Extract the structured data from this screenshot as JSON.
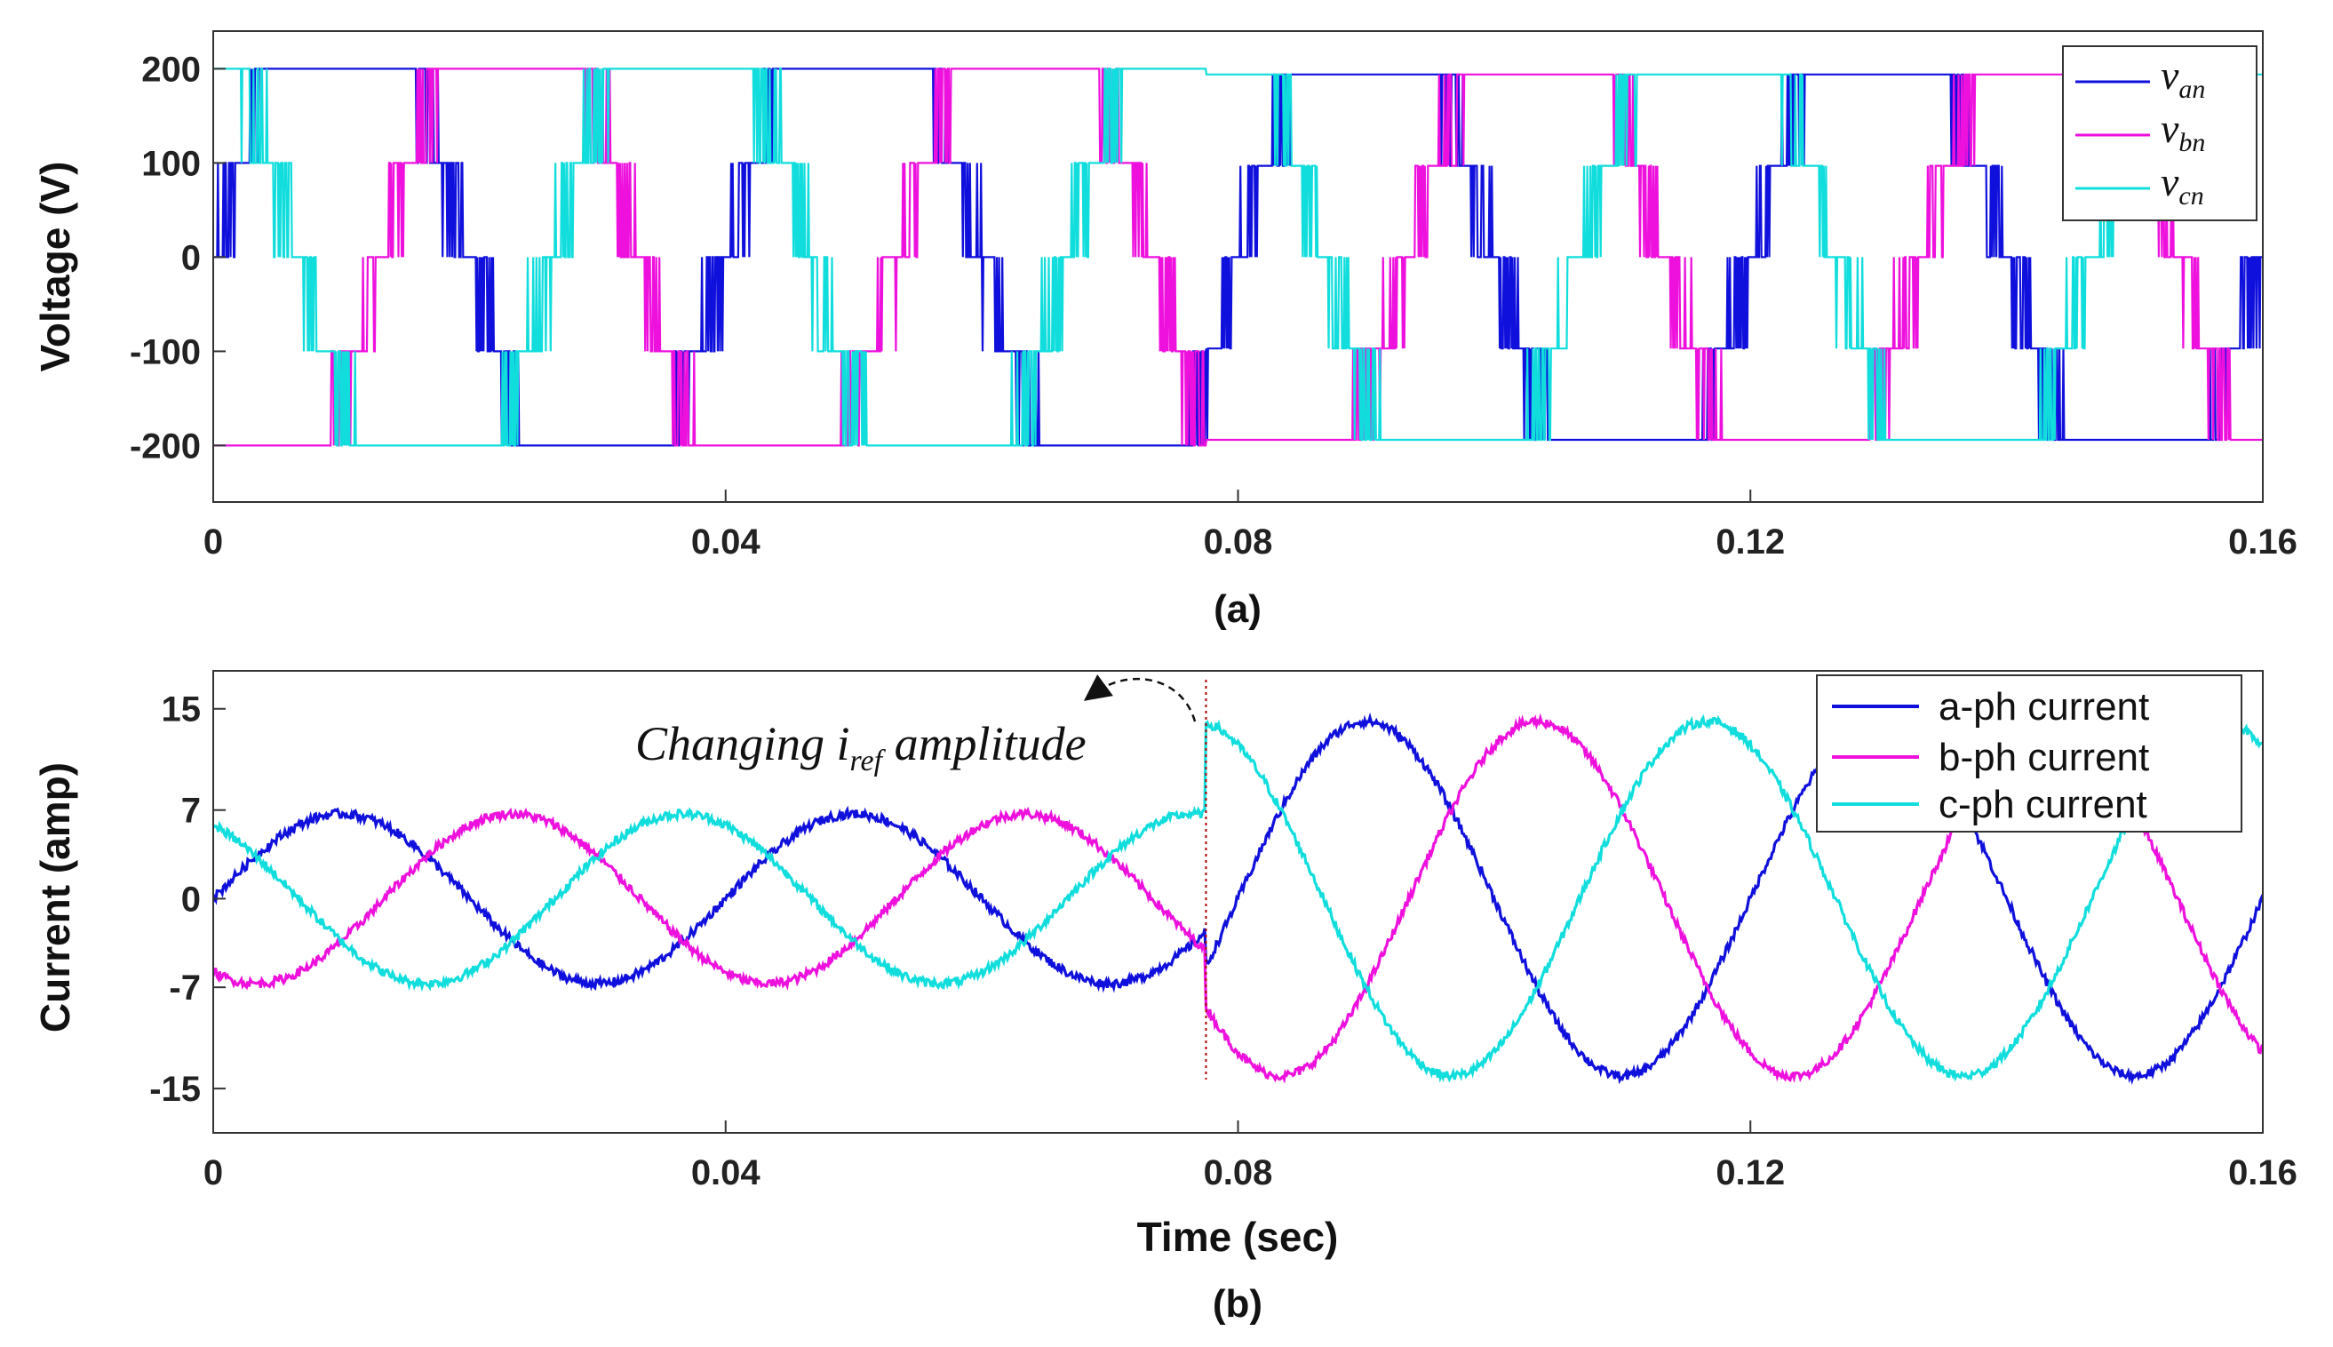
{
  "colors": {
    "a": "#1010dd",
    "b": "#ee11dd",
    "c": "#11dddd"
  },
  "chart_data": [
    {
      "id": "a",
      "type": "line",
      "caption": "(a)",
      "xlabel": "",
      "ylabel": "Voltage (V)",
      "xlim": [
        0,
        0.16
      ],
      "ylim": [
        -260,
        240
      ],
      "xticks": [
        0,
        0.04,
        0.08,
        0.12,
        0.16
      ],
      "xtick_labels": [
        "0",
        "0.04",
        "0.08",
        "0.12",
        "0.16"
      ],
      "yticks": [
        200,
        100,
        0,
        -100,
        -200
      ],
      "ytick_labels": [
        "200",
        "100",
        "0",
        "-100",
        "-200"
      ],
      "legend": [
        {
          "main": "v",
          "sub": "an"
        },
        {
          "main": "v",
          "sub": "bn"
        },
        {
          "main": "v",
          "sub": "cn"
        }
      ],
      "legend_position": "top-right",
      "series": [
        {
          "name": "van",
          "color_key": "a",
          "phase_deg": 0,
          "step_levels": [
            0,
            100,
            200
          ],
          "amplitude_before": 200,
          "amplitude_after": 200,
          "freq_hz": 25
        },
        {
          "name": "vbn",
          "color_key": "b",
          "phase_deg": -120,
          "step_levels": [
            0,
            100,
            200
          ],
          "amplitude_before": 200,
          "amplitude_after": 200,
          "freq_hz": 25
        },
        {
          "name": "vcn",
          "color_key": "c",
          "phase_deg": 120,
          "step_levels": [
            0,
            100,
            200
          ],
          "amplitude_before": 200,
          "amplitude_after": 200,
          "freq_hz": 25
        }
      ]
    },
    {
      "id": "b",
      "type": "line",
      "caption": "(b)",
      "xlabel": "Time (sec)",
      "ylabel": "Current (amp)",
      "xlim": [
        0,
        0.16
      ],
      "ylim": [
        -18.5,
        18
      ],
      "xticks": [
        0,
        0.04,
        0.08,
        0.12,
        0.16
      ],
      "xtick_labels": [
        "0",
        "0.04",
        "0.08",
        "0.12",
        "0.16"
      ],
      "yticks": [
        15,
        7,
        0,
        -7,
        -15
      ],
      "ytick_labels": [
        "15",
        "7",
        "0",
        "-7",
        "-15"
      ],
      "legend": [
        "a-ph current",
        "b-ph current",
        "c-ph current"
      ],
      "legend_position": "top-right",
      "annotation": {
        "prefix": "Changing ",
        "i": "i",
        "sub": "ref",
        "suffix": " amplitude",
        "x": 0.0775
      },
      "series": [
        {
          "name": "a-ph current",
          "color_key": "a",
          "phase_deg": 0,
          "amplitude_before": 6.7,
          "amplitude_after": 14,
          "freq_hz": 25
        },
        {
          "name": "b-ph current",
          "color_key": "b",
          "phase_deg": -120,
          "amplitude_before": 6.7,
          "amplitude_after": 14,
          "freq_hz": 25
        },
        {
          "name": "c-ph current",
          "color_key": "c",
          "phase_deg": 120,
          "amplitude_before": 6.7,
          "amplitude_after": 14,
          "freq_hz": 25
        }
      ]
    }
  ]
}
